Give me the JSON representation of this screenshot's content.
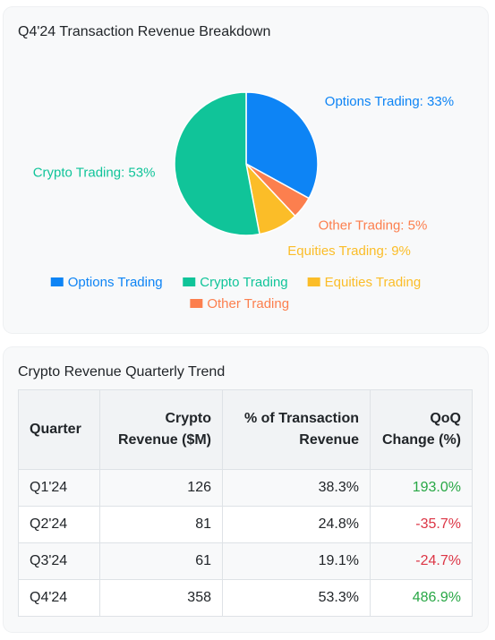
{
  "colors": {
    "options": "#0d84f5",
    "crypto": "#10c499",
    "equities": "#fbbd28",
    "other": "#fc7f4e",
    "positive": "#28a745",
    "negative": "#dc3545"
  },
  "breakdown_card": {
    "title": "Q4'24 Transaction Revenue Breakdown"
  },
  "trend_card": {
    "title": "Crypto Revenue Quarterly Trend",
    "columns": [
      "Quarter",
      "Crypto Revenue ($M)",
      "% of Transaction Revenue",
      "QoQ Change (%)"
    ],
    "rows": [
      {
        "quarter": "Q1'24",
        "revenue": "126",
        "pct": "38.3%",
        "qoq": "193.0%",
        "trend": "positive"
      },
      {
        "quarter": "Q2'24",
        "revenue": "81",
        "pct": "24.8%",
        "qoq": "-35.7%",
        "trend": "negative"
      },
      {
        "quarter": "Q3'24",
        "revenue": "61",
        "pct": "19.1%",
        "qoq": "-24.7%",
        "trend": "negative"
      },
      {
        "quarter": "Q4'24",
        "revenue": "358",
        "pct": "53.3%",
        "qoq": "486.9%",
        "trend": "positive"
      }
    ]
  },
  "chart_data": {
    "type": "pie",
    "title": "Q4'24 Transaction Revenue Breakdown",
    "legend_position": "bottom",
    "slices": [
      {
        "name": "Options Trading",
        "value": 33,
        "label": "Options Trading: 33%",
        "color": "#0d84f5"
      },
      {
        "name": "Other Trading",
        "value": 5,
        "label": "Other Trading: 5%",
        "color": "#fc7f4e"
      },
      {
        "name": "Equities Trading",
        "value": 9,
        "label": "Equities Trading: 9%",
        "color": "#fbbd28"
      },
      {
        "name": "Crypto Trading",
        "value": 53,
        "label": "Crypto Trading: 53%",
        "color": "#10c499"
      }
    ],
    "legend": [
      {
        "name": "Options Trading",
        "color": "#0d84f5"
      },
      {
        "name": "Crypto Trading",
        "color": "#10c499"
      },
      {
        "name": "Equities Trading",
        "color": "#fbbd28"
      },
      {
        "name": "Other Trading",
        "color": "#fc7f4e"
      }
    ]
  }
}
